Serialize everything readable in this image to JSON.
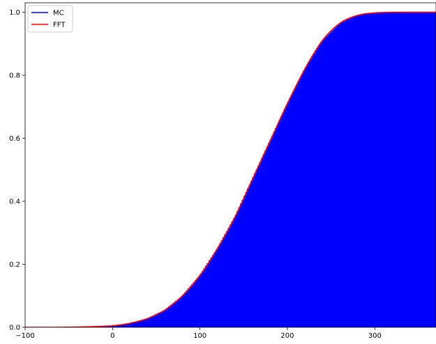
{
  "chart_data": {
    "type": "area",
    "xlim": [
      -100,
      370
    ],
    "ylim": [
      0,
      1.03
    ],
    "grid": false,
    "legend_position": "top-left",
    "xticks": [
      -100,
      0,
      100,
      200,
      300
    ],
    "yticks": [
      0.0,
      0.2,
      0.4,
      0.6,
      0.8,
      1.0
    ],
    "xtick_labels": [
      "−100",
      "0",
      "100",
      "200",
      "300"
    ],
    "ytick_labels": [
      "0.0",
      "0.2",
      "0.4",
      "0.6",
      "0.8",
      "1.0"
    ],
    "series": [
      {
        "name": "MC",
        "style": "histogram-filled",
        "color": "#0000ff",
        "x": [
          -100,
          -50,
          0,
          20,
          40,
          60,
          80,
          100,
          120,
          140,
          160,
          180,
          200,
          220,
          240,
          260,
          280,
          300,
          320,
          340,
          370
        ],
        "y": [
          0.0,
          0.0005,
          0.005,
          0.013,
          0.028,
          0.055,
          0.1,
          0.165,
          0.25,
          0.35,
          0.47,
          0.59,
          0.71,
          0.82,
          0.91,
          0.965,
          0.99,
          0.998,
          1.0,
          1.0,
          1.0
        ]
      },
      {
        "name": "FFT",
        "style": "line",
        "color": "#ff0000",
        "x": [
          -100,
          -50,
          0,
          20,
          40,
          60,
          80,
          100,
          120,
          140,
          160,
          180,
          200,
          220,
          240,
          260,
          280,
          300,
          320,
          340,
          370
        ],
        "y": [
          0.0,
          0.0005,
          0.005,
          0.013,
          0.028,
          0.055,
          0.1,
          0.165,
          0.25,
          0.35,
          0.47,
          0.59,
          0.71,
          0.82,
          0.91,
          0.965,
          0.99,
          0.998,
          1.0,
          1.0,
          1.0
        ]
      }
    ]
  }
}
